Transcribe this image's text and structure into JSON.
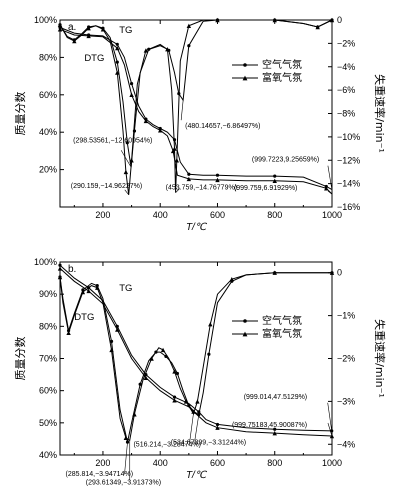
{
  "chart_data": [
    {
      "panel_label": "a.",
      "type": "line",
      "xlabel": "T/℃",
      "ylabel_left": "质量分数",
      "ylabel_right": "失重速率/min⁻¹",
      "xlim": [
        50,
        1000
      ],
      "ylim_left": [
        0,
        100
      ],
      "ylim_right": [
        -16,
        0
      ],
      "x_ticks": [
        "200",
        "400",
        "600",
        "800",
        "1000"
      ],
      "y_ticks_left": [
        "20%",
        "40%",
        "60%",
        "80%",
        "100%"
      ],
      "y_ticks_right": [
        "0",
        "−2%",
        "−4%",
        "−6%",
        "−8%",
        "−10%",
        "−12%",
        "−14%",
        "−16%"
      ],
      "legend": {
        "position": "right",
        "entries": [
          {
            "label": "空气气氛",
            "marker": "circle"
          },
          {
            "label": "富氧气氛",
            "marker": "triangle"
          }
        ]
      },
      "curve_labels": [
        {
          "text": "TG",
          "x": 280,
          "y": 93
        },
        {
          "text": "DTG",
          "x": 170,
          "y": 78
        }
      ],
      "series": [
        {
          "name": "空气气氛",
          "kind": "TG",
          "axis": "left",
          "marker": "circle",
          "x": [
            50,
            100,
            150,
            200,
            250,
            275,
            300,
            325,
            350,
            375,
            400,
            425,
            450,
            470,
            500,
            550,
            600,
            700,
            800,
            900,
            980,
            1000
          ],
          "y": [
            96,
            93,
            92,
            91.5,
            87,
            80,
            66,
            54,
            47,
            44,
            42,
            40,
            36,
            24,
            17.5,
            17,
            17,
            16.5,
            16.5,
            16,
            11,
            9.3
          ]
        },
        {
          "name": "富氧气氛",
          "kind": "TG",
          "axis": "left",
          "marker": "triangle",
          "x": [
            50,
            100,
            150,
            200,
            250,
            275,
            300,
            325,
            350,
            375,
            400,
            425,
            445,
            460,
            500,
            550,
            600,
            700,
            800,
            900,
            980,
            1000
          ],
          "y": [
            95,
            92,
            91.5,
            91,
            85,
            76,
            60,
            51,
            46,
            43,
            41,
            38,
            30,
            17,
            15,
            14.5,
            14.5,
            14,
            14,
            13.5,
            10,
            6.9
          ]
        },
        {
          "name": "空气气氛",
          "kind": "DTG",
          "axis": "right",
          "marker": "circle",
          "x": [
            50,
            75,
            100,
            125,
            150,
            175,
            200,
            225,
            250,
            270,
            285,
            298.5,
            310,
            330,
            360,
            400,
            430,
            450,
            465,
            480,
            500,
            550,
            600,
            700,
            800,
            900,
            950,
            975,
            1000
          ],
          "y": [
            -0.4,
            -1.4,
            -1.7,
            -1.2,
            -0.6,
            -0.5,
            -0.7,
            -1.5,
            -3.6,
            -7,
            -10.5,
            -12.6,
            -9.5,
            -4.5,
            -2.5,
            -2.1,
            -2.6,
            -4.5,
            -6.3,
            -6.86,
            -2.2,
            -0.1,
            0,
            0,
            0,
            -0.3,
            -0.6,
            -0.3,
            0
          ]
        },
        {
          "name": "富氧气氛",
          "kind": "DTG",
          "axis": "right",
          "marker": "triangle",
          "x": [
            50,
            75,
            100,
            125,
            150,
            175,
            200,
            225,
            250,
            270,
            280,
            290,
            300,
            320,
            350,
            400,
            425,
            440,
            450,
            453.8,
            458,
            470,
            500,
            550,
            600,
            700,
            800,
            900,
            950,
            975,
            1000
          ],
          "y": [
            -0.4,
            -1.5,
            -1.8,
            -1.3,
            -0.7,
            -0.5,
            -0.8,
            -1.8,
            -4.5,
            -9.5,
            -13,
            -14.96,
            -12,
            -5.5,
            -2.6,
            -2.2,
            -2.5,
            -6,
            -11,
            -14.77,
            -12,
            -3.5,
            -0.5,
            0,
            0,
            0,
            0,
            -0.3,
            -0.6,
            -0.3,
            0
          ]
        }
      ],
      "annotations": [
        {
          "text": "(298.53561,−12.60954%)",
          "x": 298.5,
          "y": -12.6,
          "axis": "right"
        },
        {
          "text": "(290.159,−14.96227%)",
          "x": 290.2,
          "y": -14.96,
          "axis": "right"
        },
        {
          "text": "(453.759,−14.76779%)",
          "x": 453.8,
          "y": -14.77,
          "axis": "right"
        },
        {
          "text": "(480.14657,−6.86497%)",
          "x": 480.1,
          "y": -6.86,
          "axis": "right"
        },
        {
          "text": "(999.7223,9.25659%)",
          "x": 999.7,
          "y": 9.26,
          "axis": "left"
        },
        {
          "text": "(999.759,6.91929%)",
          "x": 999.8,
          "y": 6.92,
          "axis": "left"
        }
      ]
    },
    {
      "panel_label": "b.",
      "type": "line",
      "xlabel": "T/℃",
      "ylabel_left": "质量分数",
      "ylabel_right": "失重速率/min⁻¹",
      "xlim": [
        50,
        1000
      ],
      "ylim_left": [
        40,
        100
      ],
      "ylim_right": [
        -4.25,
        0.25
      ],
      "x_ticks": [
        "200",
        "400",
        "600",
        "800",
        "1000"
      ],
      "y_ticks_left": [
        "40%",
        "50%",
        "60%",
        "70%",
        "80%",
        "90%",
        "100%"
      ],
      "y_ticks_right": [
        "0",
        "−1%",
        "−2%",
        "−3%",
        "−4%"
      ],
      "legend": {
        "position": "right",
        "entries": [
          {
            "label": "空气气氛",
            "marker": "circle"
          },
          {
            "label": "富氧气氛",
            "marker": "triangle"
          }
        ]
      },
      "curve_labels": [
        {
          "text": "TG",
          "x": 280,
          "y": 91
        },
        {
          "text": "DTG",
          "x": 135,
          "y": 82
        }
      ],
      "series": [
        {
          "name": "空气气氛",
          "kind": "TG",
          "axis": "left",
          "marker": "circle",
          "x": [
            50,
            100,
            150,
            200,
            250,
            300,
            350,
            400,
            450,
            500,
            534.7,
            560,
            600,
            700,
            800,
            900,
            999
          ],
          "y": [
            99,
            95,
            92,
            88,
            80,
            71,
            65,
            61,
            58,
            56,
            53.4,
            51,
            49.5,
            48.5,
            48,
            47.7,
            47.5
          ]
        },
        {
          "name": "富氧气氛",
          "kind": "TG",
          "axis": "left",
          "marker": "triangle",
          "x": [
            50,
            100,
            150,
            200,
            250,
            300,
            350,
            400,
            450,
            500,
            516.2,
            560,
            600,
            700,
            800,
            900,
            999.8
          ],
          "y": [
            98,
            94,
            91,
            87,
            79,
            70,
            64,
            60,
            57,
            55,
            53.5,
            50,
            48.5,
            47.2,
            46.8,
            46.3,
            45.9
          ]
        },
        {
          "name": "空气气氛",
          "kind": "DTG",
          "axis": "right",
          "marker": "circle",
          "x": [
            50,
            60,
            80,
            100,
            130,
            160,
            180,
            200,
            230,
            260,
            285.8,
            300,
            330,
            360,
            385,
            400,
            420,
            440,
            460,
            480,
            500,
            520,
            534.7,
            550,
            570,
            600,
            650,
            700,
            800,
            900,
            1000
          ],
          "y": [
            -0.1,
            -0.6,
            -1.35,
            -0.95,
            -0.4,
            -0.25,
            -0.3,
            -0.6,
            -1.6,
            -3.2,
            -3.95,
            -3.5,
            -2.6,
            -2.05,
            -1.85,
            -1.85,
            -1.95,
            -2.1,
            -2.35,
            -2.75,
            -3.1,
            -3.25,
            -3.31,
            -2.8,
            -1.9,
            -0.7,
            -0.2,
            -0.05,
            0,
            0,
            0
          ]
        },
        {
          "name": "富氧气氛",
          "kind": "DTG",
          "axis": "right",
          "marker": "triangle",
          "x": [
            50,
            60,
            80,
            100,
            130,
            160,
            180,
            200,
            230,
            260,
            280,
            293.6,
            310,
            340,
            370,
            395,
            410,
            430,
            450,
            470,
            490,
            516.2,
            530,
            550,
            575,
            600,
            650,
            700,
            800,
            900,
            1000
          ],
          "y": [
            -0.1,
            -0.7,
            -1.4,
            -1.0,
            -0.45,
            -0.3,
            -0.35,
            -0.7,
            -1.8,
            -3.4,
            -3.85,
            -3.91,
            -3.3,
            -2.5,
            -2.0,
            -1.75,
            -1.8,
            -2.0,
            -2.3,
            -2.7,
            -3.0,
            -3.29,
            -3.0,
            -2.2,
            -1.2,
            -0.5,
            -0.15,
            -0.05,
            0,
            0,
            0
          ]
        }
      ],
      "annotations": [
        {
          "text": "(534.67899,−3.31244%)",
          "x": 534.7,
          "y": -3.31,
          "axis": "right"
        },
        {
          "text": "(516.214,−3.28474%)",
          "x": 516.2,
          "y": -3.28,
          "axis": "right"
        },
        {
          "text": "(999.014,47.5129%)",
          "x": 999.0,
          "y": 47.51,
          "axis": "left"
        },
        {
          "text": "(285.814,−3.94714%)",
          "x": 285.8,
          "y": -3.95,
          "axis": "right"
        },
        {
          "text": "(293.61349,−3.91373%)",
          "x": 293.6,
          "y": -3.91,
          "axis": "right"
        },
        {
          "text": "(999.75183,45.90087%)",
          "x": 999.8,
          "y": 45.9,
          "axis": "left"
        }
      ]
    }
  ]
}
